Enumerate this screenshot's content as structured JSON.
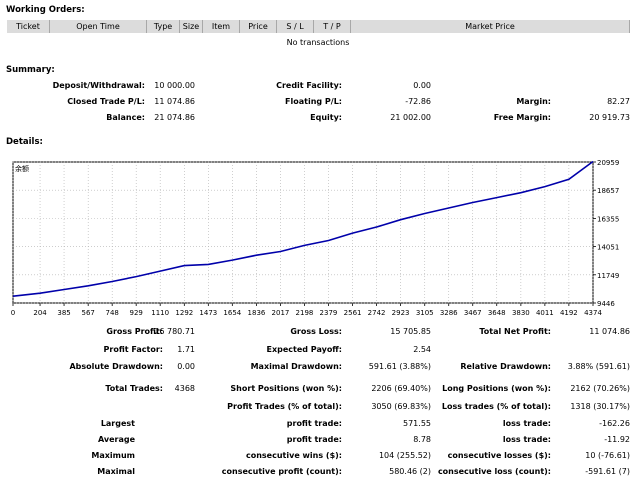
{
  "working_orders": {
    "title": "Working Orders:",
    "columns": [
      "Ticket",
      "Open Time",
      "Type",
      "Size",
      "Item",
      "Price",
      "S / L",
      "T / P",
      "Market Price"
    ],
    "empty_text": "No transactions"
  },
  "summary": {
    "title": "Summary:",
    "rows": [
      [
        {
          "label": "Deposit/Withdrawal:",
          "value": "10 000.00"
        },
        {
          "label": "Credit Facility:",
          "value": "0.00"
        },
        {
          "label": "",
          "value": ""
        }
      ],
      [
        {
          "label": "Closed Trade P/L:",
          "value": "11 074.86"
        },
        {
          "label": "Floating P/L:",
          "value": "-72.86"
        },
        {
          "label": "Margin:",
          "value": "82.27"
        }
      ],
      [
        {
          "label": "Balance:",
          "value": "21 074.86"
        },
        {
          "label": "Equity:",
          "value": "21 002.00"
        },
        {
          "label": "Free Margin:",
          "value": "20 919.73"
        }
      ]
    ]
  },
  "details": {
    "title": "Details:",
    "chart_data": {
      "type": "line",
      "title": "",
      "corner_label": "余额",
      "x_ticks": [
        0,
        204,
        385,
        567,
        748,
        929,
        1110,
        1292,
        1473,
        1654,
        1836,
        2017,
        2198,
        2379,
        2561,
        2742,
        2923,
        3105,
        3286,
        3467,
        3648,
        3830,
        4011,
        4192,
        4374
      ],
      "y_ticks": [
        9446,
        11749,
        14051,
        16355,
        18657,
        20959
      ],
      "xlim": [
        0,
        4374
      ],
      "ylim": [
        9446,
        20959
      ],
      "series": [
        {
          "color": "#0000aa",
          "x": [
            0,
            204,
            385,
            567,
            748,
            929,
            1110,
            1292,
            1473,
            1654,
            1836,
            2017,
            2198,
            2379,
            2561,
            2742,
            2923,
            3105,
            3286,
            3467,
            3648,
            3830,
            4011,
            4192,
            4374
          ],
          "y": [
            10000,
            10250,
            10550,
            10850,
            11200,
            11600,
            12050,
            12500,
            12600,
            12950,
            13350,
            13650,
            14150,
            14550,
            15150,
            15650,
            16250,
            16750,
            17200,
            17650,
            18050,
            18450,
            18950,
            19550,
            21000
          ]
        }
      ],
      "grid": true
    }
  },
  "stats": {
    "row1": [
      {
        "label": "Gross Profit:",
        "value": "26 780.71"
      },
      {
        "label": "Gross Loss:",
        "value": "15 705.85"
      },
      {
        "label": "Total Net Profit:",
        "value": "11 074.86"
      }
    ],
    "row2": [
      {
        "label": "Profit Factor:",
        "value": "1.71"
      },
      {
        "label": "Expected Payoff:",
        "value": "2.54"
      }
    ],
    "row3": [
      {
        "label": "Absolute Drawdown:",
        "value": "0.00"
      },
      {
        "label": "Maximal Drawdown:",
        "value": "591.61 (3.88%)"
      },
      {
        "label": "Relative Drawdown:",
        "value": "3.88% (591.61)"
      }
    ],
    "row4": [
      {
        "label": "Total Trades:",
        "value": "4368"
      },
      {
        "label": "Short Positions (won %):",
        "value": "2206 (69.40%)"
      },
      {
        "label": "Long Positions (won %):",
        "value": "2162 (70.26%)"
      }
    ],
    "row5": [
      {
        "label": "Profit Trades (% of total):",
        "value": "3050 (69.83%)"
      },
      {
        "label": "Loss trades (% of total):",
        "value": "1318 (30.17%)"
      }
    ],
    "row6": {
      "head": "Largest",
      "mid_label": "profit trade:",
      "mid_value": "571.55",
      "right_label": "loss trade:",
      "right_value": "-162.26"
    },
    "row7": {
      "head": "Average",
      "mid_label": "profit trade:",
      "mid_value": "8.78",
      "right_label": "loss trade:",
      "right_value": "-11.92"
    },
    "row8": {
      "head": "Maximum",
      "mid_label": "consecutive wins ($):",
      "mid_value": "104 (255.52)",
      "right_label": "consecutive losses ($):",
      "right_value": "10 (-76.61)"
    },
    "row9": {
      "head": "Maximal",
      "mid_label": "consecutive profit (count):",
      "mid_value": "580.46 (2)",
      "right_label": "consecutive loss (count):",
      "right_value": "-591.61 (7)"
    }
  }
}
